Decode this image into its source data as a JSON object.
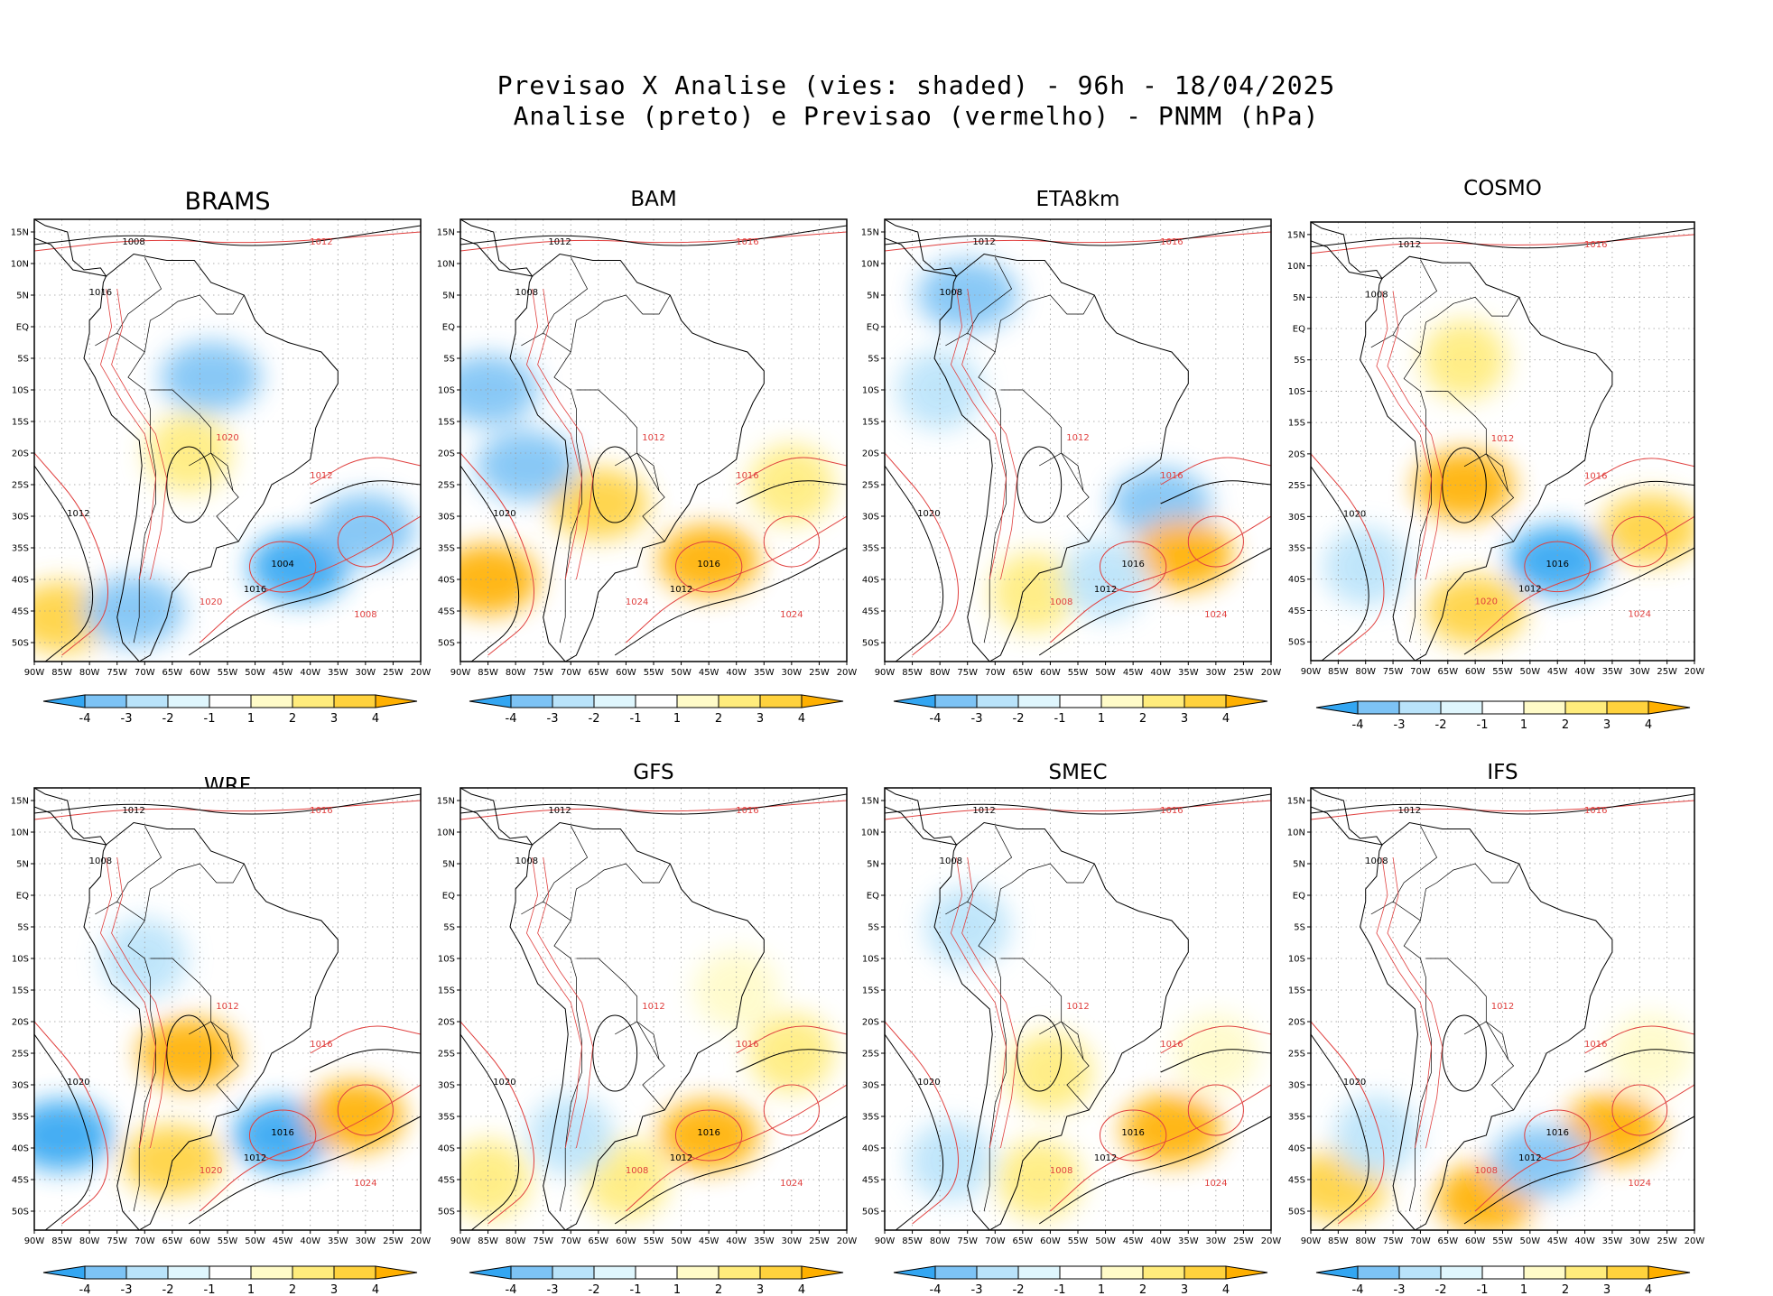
{
  "title": {
    "line1": "Previsao X Analise (vies: shaded) - 96h - 18/04/2025",
    "line2": "Analise (preto) e Previsao (vermelho) - PNMM (hPa)"
  },
  "colors": {
    "neg4": "#33a6f2",
    "neg3": "#7dc3f5",
    "neg2": "#b9e3fa",
    "neg1": "#dff6fd",
    "zero": "#ffffff",
    "pos1": "#fffbc8",
    "pos2": "#ffec7c",
    "pos3": "#ffd23d",
    "pos4": "#ffb000",
    "analysis_contour": "#000000",
    "forecast_contour": "#e0403f"
  },
  "colorbar": {
    "labels": [
      "-4",
      "-3",
      "-2",
      "-1",
      "1",
      "2",
      "3",
      "4"
    ]
  },
  "axes": {
    "lon_labels": [
      "90W",
      "85W",
      "80W",
      "75W",
      "70W",
      "65W",
      "60W",
      "55W",
      "50W",
      "45W",
      "40W",
      "35W",
      "30W",
      "25W",
      "20W"
    ],
    "lat_labels": [
      "15N",
      "10N",
      "5N",
      "EQ",
      "5S",
      "10S",
      "15S",
      "20S",
      "25S",
      "30S",
      "35S",
      "40S",
      "45S",
      "50S"
    ]
  },
  "panels": [
    {
      "name": "BRAMS",
      "labels": [
        "1008",
        "1012",
        "1016",
        "1020",
        "1004",
        "1008",
        "1012",
        "1012",
        "1016",
        "1020"
      ],
      "bias": [
        {
          "lon": -42,
          "lat": -38,
          "v": -4
        },
        {
          "lon": -30,
          "lat": -32,
          "v": -3
        },
        {
          "lon": -58,
          "lat": -8,
          "v": -3
        },
        {
          "lon": -85,
          "lat": -46,
          "v": 3
        },
        {
          "lon": -62,
          "lat": -20,
          "v": 2
        },
        {
          "lon": -72,
          "lat": -45,
          "v": -3
        }
      ]
    },
    {
      "name": "BAM",
      "labels": [
        "1012",
        "1016",
        "1008",
        "1012",
        "1016",
        "1024",
        "1020",
        "1016",
        "1012",
        "1024"
      ],
      "bias": [
        {
          "lon": -45,
          "lat": -37,
          "v": 4
        },
        {
          "lon": -65,
          "lat": -28,
          "v": 3
        },
        {
          "lon": -85,
          "lat": -40,
          "v": 4
        },
        {
          "lon": -85,
          "lat": -10,
          "v": -3
        },
        {
          "lon": -78,
          "lat": -22,
          "v": -3
        },
        {
          "lon": -30,
          "lat": -25,
          "v": 2
        }
      ]
    },
    {
      "name": "ETA8km",
      "labels": [
        "1012",
        "1016",
        "1008",
        "1012",
        "1016",
        "1024",
        "1020",
        "1016",
        "1012",
        "1008"
      ],
      "bias": [
        {
          "lon": -40,
          "lat": -28,
          "v": -3
        },
        {
          "lon": -36,
          "lat": -36,
          "v": 4
        },
        {
          "lon": -75,
          "lat": 5,
          "v": -3
        },
        {
          "lon": -80,
          "lat": -10,
          "v": -2
        },
        {
          "lon": -63,
          "lat": -42,
          "v": 2
        },
        {
          "lon": -50,
          "lat": -40,
          "v": -2
        }
      ]
    },
    {
      "name": "COSMO",
      "labels": [
        "1012",
        "1016",
        "1008",
        "1012",
        "1016",
        "1024",
        "1020",
        "1016",
        "1012",
        "1020"
      ],
      "bias": [
        {
          "lon": -45,
          "lat": -37,
          "v": -4
        },
        {
          "lon": -62,
          "lat": -25,
          "v": 4
        },
        {
          "lon": -60,
          "lat": -45,
          "v": 3
        },
        {
          "lon": -28,
          "lat": -32,
          "v": 3
        },
        {
          "lon": -62,
          "lat": -5,
          "v": 2
        },
        {
          "lon": -80,
          "lat": -38,
          "v": -2
        }
      ]
    },
    {
      "name": "WRF",
      "labels": [
        "1012",
        "1016",
        "1008",
        "1012",
        "1016",
        "1024",
        "1020",
        "1016",
        "1012",
        "1020"
      ],
      "bias": [
        {
          "lon": -45,
          "lat": -38,
          "v": -4
        },
        {
          "lon": -85,
          "lat": -38,
          "v": -4
        },
        {
          "lon": -62,
          "lat": -25,
          "v": 4
        },
        {
          "lon": -32,
          "lat": -35,
          "v": 4
        },
        {
          "lon": -65,
          "lat": -42,
          "v": 3
        },
        {
          "lon": -70,
          "lat": -10,
          "v": -2
        }
      ]
    },
    {
      "name": "GFS",
      "labels": [
        "1012",
        "1016",
        "1008",
        "1012",
        "1016",
        "1024",
        "1020",
        "1016",
        "1012",
        "1008"
      ],
      "bias": [
        {
          "lon": -45,
          "lat": -38,
          "v": 4
        },
        {
          "lon": -30,
          "lat": -25,
          "v": 2
        },
        {
          "lon": -60,
          "lat": -45,
          "v": 2
        },
        {
          "lon": -85,
          "lat": -45,
          "v": 2
        },
        {
          "lon": -70,
          "lat": -38,
          "v": -2
        },
        {
          "lon": -40,
          "lat": -15,
          "v": 1
        }
      ]
    },
    {
      "name": "SMEC",
      "labels": [
        "1012",
        "1016",
        "1008",
        "1012",
        "1016",
        "1024",
        "1020",
        "1016",
        "1012",
        "1008"
      ],
      "bias": [
        {
          "lon": -38,
          "lat": -37,
          "v": 4
        },
        {
          "lon": -60,
          "lat": -28,
          "v": 2
        },
        {
          "lon": -62,
          "lat": -45,
          "v": 2
        },
        {
          "lon": -78,
          "lat": -42,
          "v": -2
        },
        {
          "lon": -30,
          "lat": -25,
          "v": 1
        },
        {
          "lon": -75,
          "lat": -5,
          "v": -2
        }
      ]
    },
    {
      "name": "IFS",
      "labels": [
        "1012",
        "1016",
        "1008",
        "1012",
        "1016",
        "1024",
        "1020",
        "1016",
        "1012",
        "1008"
      ],
      "bias": [
        {
          "lon": -35,
          "lat": -37,
          "v": 4
        },
        {
          "lon": -58,
          "lat": -48,
          "v": 4
        },
        {
          "lon": -85,
          "lat": -46,
          "v": 3
        },
        {
          "lon": -78,
          "lat": -38,
          "v": -2
        },
        {
          "lon": -48,
          "lat": -42,
          "v": -3
        },
        {
          "lon": -28,
          "lat": -25,
          "v": 1
        }
      ]
    }
  ]
}
